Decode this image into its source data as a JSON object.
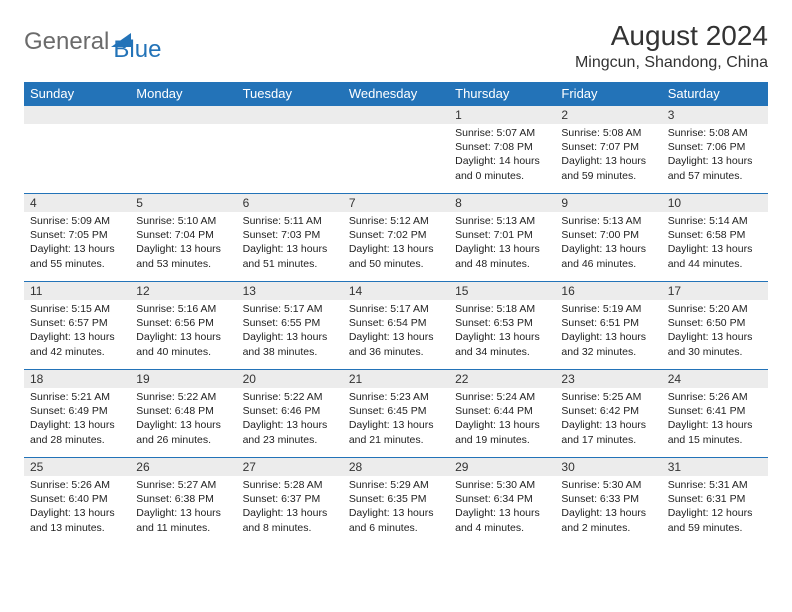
{
  "brand": {
    "part1": "General",
    "part2": "Blue"
  },
  "title": "August 2024",
  "location": "Mingcun, Shandong, China",
  "colors": {
    "header_bg": "#2373b8",
    "header_text": "#ffffff",
    "daynum_bg": "#ececec",
    "border": "#2373b8",
    "logo_gray": "#6b6b6b",
    "logo_blue": "#2373b8"
  },
  "dayNames": [
    "Sunday",
    "Monday",
    "Tuesday",
    "Wednesday",
    "Thursday",
    "Friday",
    "Saturday"
  ],
  "weeks": [
    [
      null,
      null,
      null,
      null,
      {
        "n": "1",
        "sr": "5:07 AM",
        "ss": "7:08 PM",
        "dl": "14 hours and 0 minutes."
      },
      {
        "n": "2",
        "sr": "5:08 AM",
        "ss": "7:07 PM",
        "dl": "13 hours and 59 minutes."
      },
      {
        "n": "3",
        "sr": "5:08 AM",
        "ss": "7:06 PM",
        "dl": "13 hours and 57 minutes."
      }
    ],
    [
      {
        "n": "4",
        "sr": "5:09 AM",
        "ss": "7:05 PM",
        "dl": "13 hours and 55 minutes."
      },
      {
        "n": "5",
        "sr": "5:10 AM",
        "ss": "7:04 PM",
        "dl": "13 hours and 53 minutes."
      },
      {
        "n": "6",
        "sr": "5:11 AM",
        "ss": "7:03 PM",
        "dl": "13 hours and 51 minutes."
      },
      {
        "n": "7",
        "sr": "5:12 AM",
        "ss": "7:02 PM",
        "dl": "13 hours and 50 minutes."
      },
      {
        "n": "8",
        "sr": "5:13 AM",
        "ss": "7:01 PM",
        "dl": "13 hours and 48 minutes."
      },
      {
        "n": "9",
        "sr": "5:13 AM",
        "ss": "7:00 PM",
        "dl": "13 hours and 46 minutes."
      },
      {
        "n": "10",
        "sr": "5:14 AM",
        "ss": "6:58 PM",
        "dl": "13 hours and 44 minutes."
      }
    ],
    [
      {
        "n": "11",
        "sr": "5:15 AM",
        "ss": "6:57 PM",
        "dl": "13 hours and 42 minutes."
      },
      {
        "n": "12",
        "sr": "5:16 AM",
        "ss": "6:56 PM",
        "dl": "13 hours and 40 minutes."
      },
      {
        "n": "13",
        "sr": "5:17 AM",
        "ss": "6:55 PM",
        "dl": "13 hours and 38 minutes."
      },
      {
        "n": "14",
        "sr": "5:17 AM",
        "ss": "6:54 PM",
        "dl": "13 hours and 36 minutes."
      },
      {
        "n": "15",
        "sr": "5:18 AM",
        "ss": "6:53 PM",
        "dl": "13 hours and 34 minutes."
      },
      {
        "n": "16",
        "sr": "5:19 AM",
        "ss": "6:51 PM",
        "dl": "13 hours and 32 minutes."
      },
      {
        "n": "17",
        "sr": "5:20 AM",
        "ss": "6:50 PM",
        "dl": "13 hours and 30 minutes."
      }
    ],
    [
      {
        "n": "18",
        "sr": "5:21 AM",
        "ss": "6:49 PM",
        "dl": "13 hours and 28 minutes."
      },
      {
        "n": "19",
        "sr": "5:22 AM",
        "ss": "6:48 PM",
        "dl": "13 hours and 26 minutes."
      },
      {
        "n": "20",
        "sr": "5:22 AM",
        "ss": "6:46 PM",
        "dl": "13 hours and 23 minutes."
      },
      {
        "n": "21",
        "sr": "5:23 AM",
        "ss": "6:45 PM",
        "dl": "13 hours and 21 minutes."
      },
      {
        "n": "22",
        "sr": "5:24 AM",
        "ss": "6:44 PM",
        "dl": "13 hours and 19 minutes."
      },
      {
        "n": "23",
        "sr": "5:25 AM",
        "ss": "6:42 PM",
        "dl": "13 hours and 17 minutes."
      },
      {
        "n": "24",
        "sr": "5:26 AM",
        "ss": "6:41 PM",
        "dl": "13 hours and 15 minutes."
      }
    ],
    [
      {
        "n": "25",
        "sr": "5:26 AM",
        "ss": "6:40 PM",
        "dl": "13 hours and 13 minutes."
      },
      {
        "n": "26",
        "sr": "5:27 AM",
        "ss": "6:38 PM",
        "dl": "13 hours and 11 minutes."
      },
      {
        "n": "27",
        "sr": "5:28 AM",
        "ss": "6:37 PM",
        "dl": "13 hours and 8 minutes."
      },
      {
        "n": "28",
        "sr": "5:29 AM",
        "ss": "6:35 PM",
        "dl": "13 hours and 6 minutes."
      },
      {
        "n": "29",
        "sr": "5:30 AM",
        "ss": "6:34 PM",
        "dl": "13 hours and 4 minutes."
      },
      {
        "n": "30",
        "sr": "5:30 AM",
        "ss": "6:33 PM",
        "dl": "13 hours and 2 minutes."
      },
      {
        "n": "31",
        "sr": "5:31 AM",
        "ss": "6:31 PM",
        "dl": "12 hours and 59 minutes."
      }
    ]
  ],
  "labels": {
    "sunrise": "Sunrise: ",
    "sunset": "Sunset: ",
    "daylight": "Daylight: "
  }
}
